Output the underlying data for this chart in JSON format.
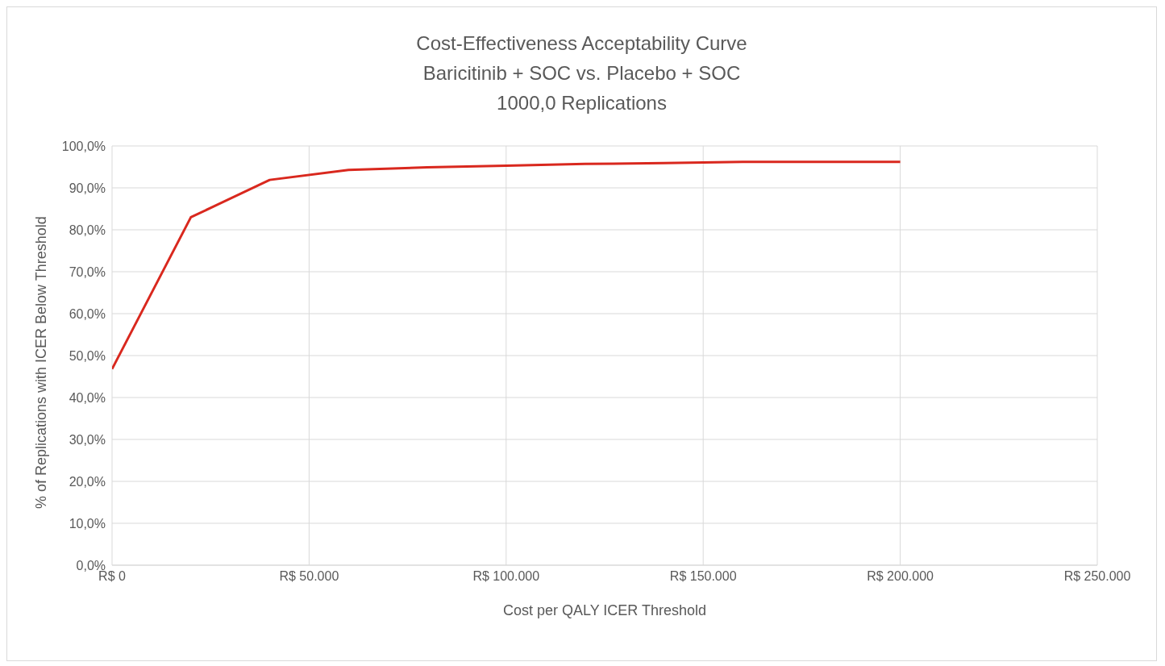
{
  "chart_data": {
    "type": "line",
    "title": "Cost-Effectiveness  Acceptability Curve\nBaricitinib + SOC vs. Placebo + SOC\n1000,0 Replications",
    "xlabel": "Cost per QALY ICER Threshold",
    "ylabel": "% of Replications with ICER Below Threshold",
    "categories": [
      "R$ 0",
      null,
      null,
      null,
      null,
      "R$ 50.000",
      null,
      null,
      null,
      null,
      "R$ 100.000",
      null,
      null,
      null,
      null,
      "R$ 150.000",
      null,
      null,
      null,
      null,
      "R$ 200.000",
      null,
      null,
      null,
      null,
      "R$ 250.000"
    ],
    "series": [
      {
        "color": "#d9281e",
        "values": [
          46.8,
          null,
          83.0,
          null,
          91.9,
          null,
          94.3,
          null,
          94.9,
          null,
          95.3,
          null,
          95.7,
          null,
          95.9,
          null,
          96.2,
          null,
          96.2,
          null,
          96.2,
          null,
          null,
          null,
          null,
          null
        ]
      }
    ],
    "ylim": [
      0,
      100
    ],
    "yticks": [
      {
        "value": 0,
        "label": "0,0%"
      },
      {
        "value": 10,
        "label": "10,0%"
      },
      {
        "value": 20,
        "label": "20,0%"
      },
      {
        "value": 30,
        "label": "30,0%"
      },
      {
        "value": 40,
        "label": "40,0%"
      },
      {
        "value": 50,
        "label": "50,0%"
      },
      {
        "value": 60,
        "label": "60,0%"
      },
      {
        "value": 70,
        "label": "70,0%"
      },
      {
        "value": 80,
        "label": "80,0%"
      },
      {
        "value": 90,
        "label": "90,0%"
      },
      {
        "value": 100,
        "label": "100,0%"
      }
    ],
    "grid": true,
    "legend": false,
    "marker": "none",
    "line_style": "solid"
  }
}
